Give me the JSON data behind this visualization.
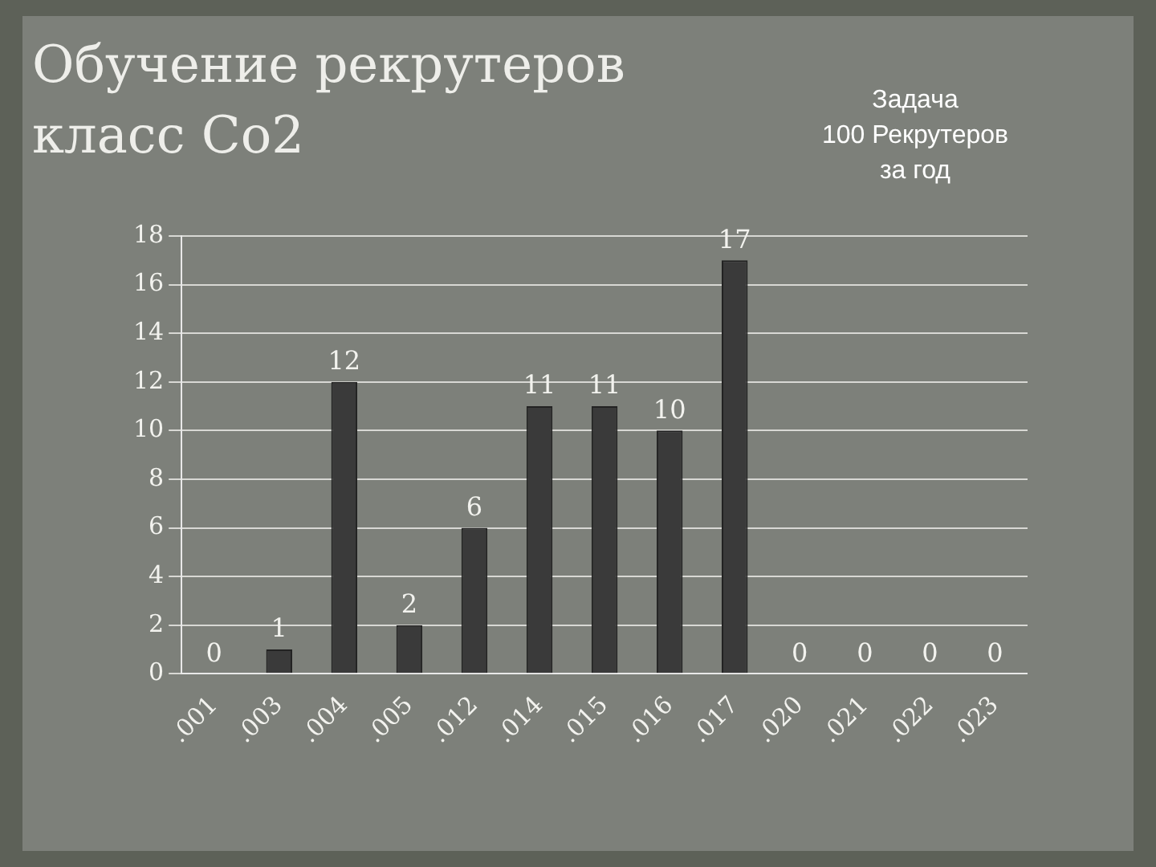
{
  "chart_data": {
    "type": "bar",
    "title": "Обучение рекрутеров\nкласс Со2",
    "annotations": [
      "Задача\n100 Рекрутеров\nза год"
    ],
    "categories": [
      ".001",
      ".003",
      ".004",
      ".005",
      ".012",
      ".014",
      ".015",
      ".016",
      ".017",
      ".020",
      ".021",
      ".022",
      ".023"
    ],
    "values": [
      0,
      1,
      12,
      2,
      6,
      11,
      11,
      10,
      17,
      0,
      0,
      0,
      0
    ],
    "color": "#3a3a3a",
    "ylim": [
      0,
      18
    ],
    "yticks": [
      0,
      2,
      4,
      6,
      8,
      10,
      12,
      14,
      16,
      18
    ],
    "grid": "y",
    "data_labels": true,
    "legend": false
  }
}
